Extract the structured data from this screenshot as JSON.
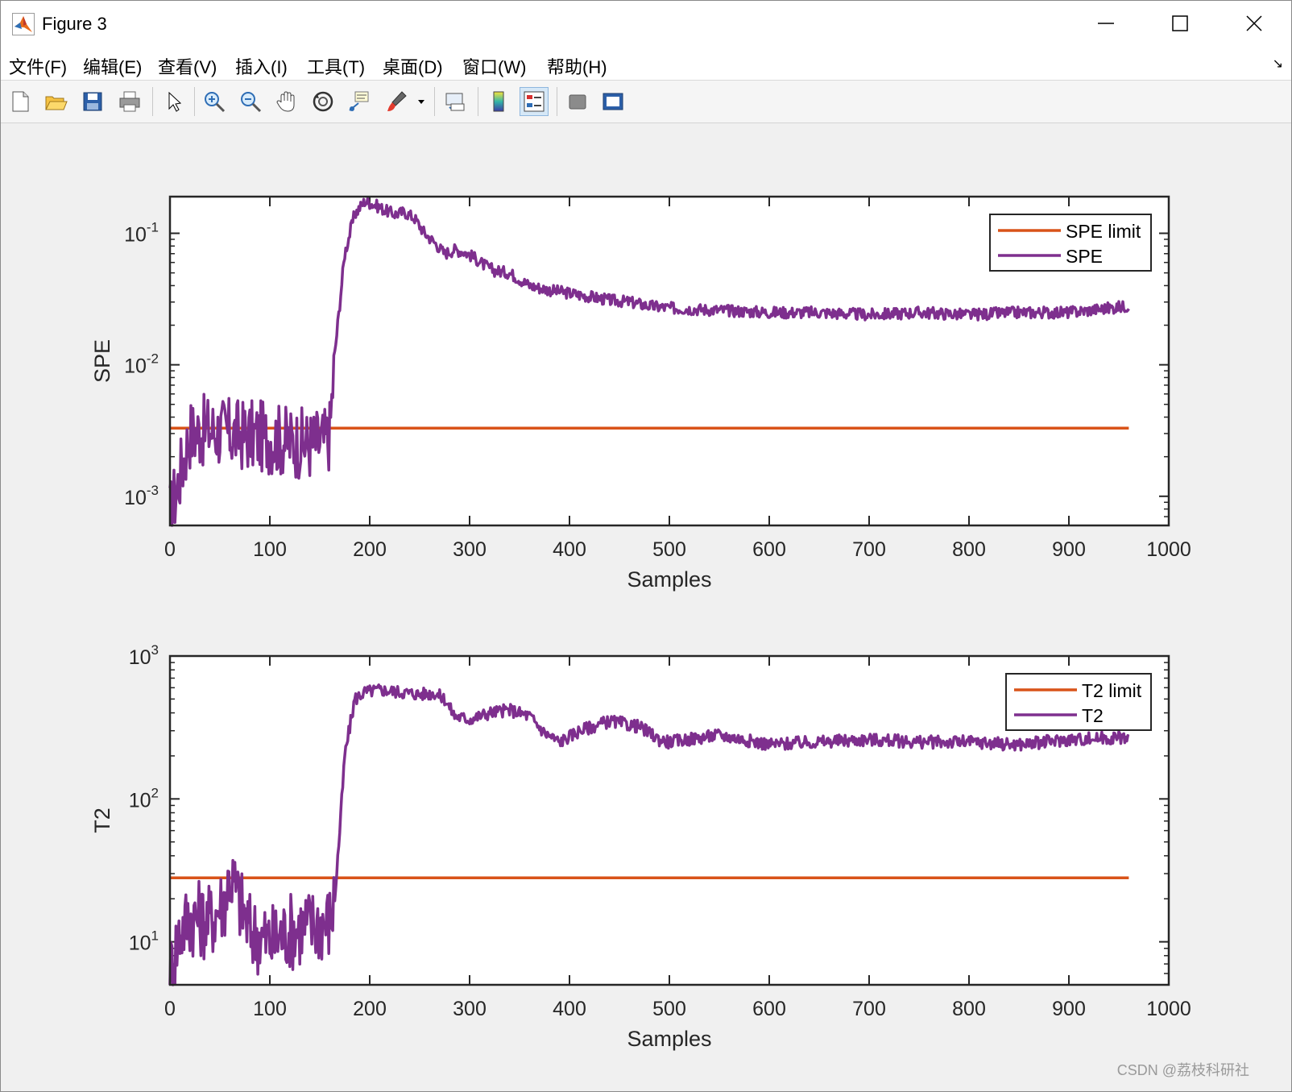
{
  "window": {
    "title": "Figure 3"
  },
  "menu": [
    "文件(F)",
    "编辑(E)",
    "查看(V)",
    "插入(I)",
    "工具(T)",
    "桌面(D)",
    "窗口(W)",
    "帮助(H)"
  ],
  "toolbar": [
    {
      "icon": "new-figure-icon"
    },
    {
      "icon": "open-file-icon"
    },
    {
      "icon": "save-icon"
    },
    {
      "icon": "print-icon"
    },
    {
      "icon": "edit-plot-arrow-icon"
    },
    {
      "icon": "zoom-in-icon"
    },
    {
      "icon": "zoom-out-icon"
    },
    {
      "icon": "pan-hand-icon"
    },
    {
      "icon": "rotate-3d-icon"
    },
    {
      "icon": "data-cursor-icon"
    },
    {
      "icon": "brush-icon"
    },
    {
      "icon": "link-plot-icon"
    },
    {
      "icon": "colorbar-icon"
    },
    {
      "icon": "legend-icon"
    },
    {
      "icon": "hide-plot-tools-icon"
    },
    {
      "icon": "show-plot-tools-icon"
    }
  ],
  "watermark": "CSDN @荔枝科研社",
  "colors": {
    "limit": "#D95319",
    "signal": "#7E2F8E"
  },
  "chart_data": [
    {
      "type": "line",
      "ylabel": "SPE",
      "xlabel": "Samples",
      "xlim": [
        0,
        1000
      ],
      "ylim": [
        0.0006,
        0.19
      ],
      "yscale": "log",
      "xticks": [
        "0",
        "100",
        "200",
        "300",
        "400",
        "500",
        "600",
        "700",
        "800",
        "900",
        "1000"
      ],
      "yticks": [
        {
          "value": 0.001,
          "base": "10",
          "exp": "-3"
        },
        {
          "value": 0.01,
          "base": "10",
          "exp": "-2"
        },
        {
          "value": 0.1,
          "base": "10",
          "exp": "-1"
        }
      ],
      "legend": "top-right",
      "series": [
        {
          "name": "SPE limit",
          "role": "limit",
          "x": [
            0,
            960
          ],
          "y": [
            0.0033,
            0.0033
          ]
        },
        {
          "name": "SPE",
          "role": "signal",
          "x": [
            0,
            20,
            40,
            60,
            80,
            100,
            120,
            140,
            155,
            160,
            165,
            175,
            185,
            195,
            205,
            215,
            225,
            235,
            245,
            255,
            265,
            275,
            285,
            295,
            305,
            315,
            325,
            340,
            360,
            380,
            400,
            420,
            440,
            460,
            480,
            500,
            550,
            600,
            650,
            700,
            750,
            800,
            850,
            900,
            960
          ],
          "y": [
            0.0007,
            0.003,
            0.0032,
            0.003,
            0.0029,
            0.0028,
            0.0026,
            0.0025,
            0.0026,
            0.003,
            0.012,
            0.07,
            0.14,
            0.175,
            0.165,
            0.15,
            0.14,
            0.145,
            0.13,
            0.1,
            0.085,
            0.07,
            0.075,
            0.072,
            0.065,
            0.057,
            0.052,
            0.05,
            0.04,
            0.037,
            0.035,
            0.033,
            0.031,
            0.03,
            0.028,
            0.027,
            0.026,
            0.025,
            0.025,
            0.024,
            0.025,
            0.024,
            0.025,
            0.025,
            0.028
          ]
        }
      ]
    },
    {
      "type": "line",
      "ylabel": "T2",
      "xlabel": "Samples",
      "xlim": [
        0,
        1000
      ],
      "ylim": [
        5,
        1000
      ],
      "yscale": "log",
      "xticks": [
        "0",
        "100",
        "200",
        "300",
        "400",
        "500",
        "600",
        "700",
        "800",
        "900",
        "1000"
      ],
      "yticks": [
        {
          "value": 10,
          "base": "10",
          "exp": "1"
        },
        {
          "value": 100,
          "base": "10",
          "exp": "2"
        },
        {
          "value": 1000,
          "base": "10",
          "exp": "3"
        }
      ],
      "legend": "top-right",
      "series": [
        {
          "name": "T2 limit",
          "role": "limit",
          "x": [
            0,
            960
          ],
          "y": [
            28,
            28
          ]
        },
        {
          "name": "T2",
          "role": "signal",
          "x": [
            0,
            10,
            20,
            40,
            55,
            60,
            80,
            100,
            120,
            140,
            160,
            165,
            170,
            175,
            185,
            195,
            210,
            230,
            250,
            265,
            275,
            285,
            300,
            320,
            340,
            360,
            375,
            390,
            410,
            440,
            470,
            490,
            500,
            550,
            600,
            650,
            700,
            750,
            800,
            850,
            900,
            960
          ],
          "y": [
            6,
            12,
            15,
            14,
            20,
            30,
            12,
            10,
            12,
            13,
            14,
            20,
            60,
            200,
            500,
            560,
            580,
            560,
            540,
            550,
            500,
            380,
            360,
            400,
            420,
            380,
            290,
            250,
            300,
            350,
            320,
            260,
            250,
            280,
            240,
            250,
            260,
            250,
            250,
            240,
            260,
            270
          ]
        }
      ]
    }
  ]
}
